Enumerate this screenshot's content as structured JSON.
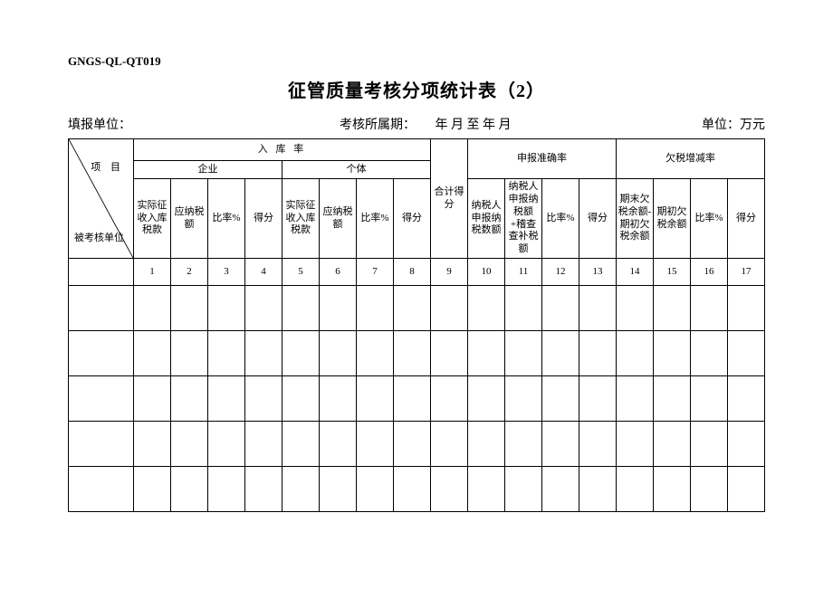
{
  "doc_code": "GNGS-QL-QT019",
  "title": "征管质量考核分项统计表（2）",
  "meta": {
    "report_unit_label": "填报单位：",
    "period_label": "考核所属期：",
    "period_value": "年  月 至      年  月",
    "unit_label": "单位：万元"
  },
  "diag": {
    "top": "项  目",
    "bottom": "被考核单位"
  },
  "sections": {
    "s1": "入  库  率",
    "s1a": "企业",
    "s1b": "个体",
    "s2": "申报准确率",
    "s3": "欠税增减率"
  },
  "cols": {
    "c1": "实际征收入库税款",
    "c2": "应纳税额",
    "c3": "比率%",
    "c4": "得分",
    "c5": "实际征收入库税款",
    "c6": "应纳税额",
    "c7": "比率%",
    "c8": "得分",
    "c9": "合计得分",
    "c10": "纳税人申报纳税数额",
    "c11": "纳税人申报纳税额+稽查查补税额",
    "c12": "比率%",
    "c13": "得分",
    "c14": "期末欠税余额-期初欠税余额",
    "c15": "期初欠税余额",
    "c16": "比率%",
    "c17": "得分"
  },
  "nums": [
    "1",
    "2",
    "3",
    "4",
    "5",
    "6",
    "7",
    "8",
    "9",
    "10",
    "11",
    "12",
    "13",
    "14",
    "15",
    "16",
    "17"
  ],
  "data_rows": 5
}
